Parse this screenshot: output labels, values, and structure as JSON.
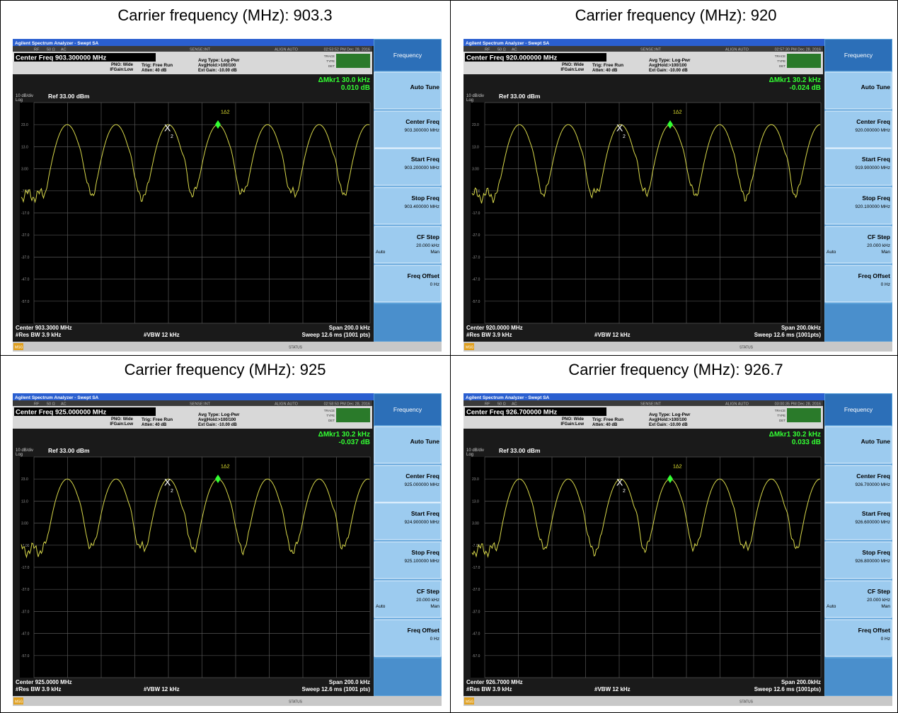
{
  "common": {
    "app_title": "Agilent Spectrum Analyzer - Swept SA",
    "rf": "RF",
    "ohm": "50 Ω",
    "ac": "AC",
    "sense": "SENSE:INT",
    "align": "ALIGN AUTO",
    "pno": "PNO: Wide",
    "ifgain": "IFGain:Low",
    "trig": "Trig: Free Run",
    "atten": "Atten: 40 dB",
    "avg_type": "Avg Type: Log-Pwr",
    "avg_hold": "Avg|Hold:>100/100",
    "ext_gain": "Ext Gain: -10.00 dB",
    "trace": "TRACE",
    "type": "TYPE",
    "det": "DET",
    "scale": "10 dB/div",
    "log": "Log",
    "ref": "Ref 33.00 dBm",
    "y_labels": [
      "23.0",
      "13.0",
      "3.00",
      "-7.00",
      "-17.0",
      "-27.0",
      "-37.0",
      "-47.0",
      "-57.0"
    ],
    "res_bw": "#Res BW 3.9 kHz",
    "vbw": "#VBW 12 kHz",
    "msg": "MSG",
    "status": "STATUS",
    "marker_x": "X",
    "marker_x_sub": "2",
    "marker_delta_label": "1Δ2",
    "softkeys": {
      "menu": "Frequency",
      "auto_tune": "Auto Tune",
      "center_freq": "Center Freq",
      "start_freq": "Start Freq",
      "stop_freq": "Stop Freq",
      "cf_step": "CF Step",
      "cf_step_value": "20.000 kHz",
      "auto": "Auto",
      "man": "Man",
      "freq_offset": "Freq Offset",
      "freq_offset_value": "0 Hz"
    }
  },
  "panels": [
    {
      "title": "Carrier frequency (MHz): 903.3",
      "time": "02:53:52 PM Dec 28, 2016",
      "center_freq_header": "Center Freq 903.300000 MHz",
      "mkr_freq": "ΔMkr1 30.0 kHz",
      "mkr_value": "0.010 dB",
      "center": "Center 903.3000 MHz",
      "span": "Span 200.0 kHz",
      "sweep": "Sweep 12.6 ms (1001 pts)",
      "sk_center": "903.300000 MHz",
      "sk_start": "903.200000 MHz",
      "sk_stop": "903.400000 MHz"
    },
    {
      "title": "Carrier frequency (MHz): 920",
      "time": "02:57:30 PM Dec 28, 2016",
      "center_freq_header": "Center Freq 920.000000 MHz",
      "mkr_freq": "ΔMkr1 30.2 kHz",
      "mkr_value": "-0.024 dB",
      "center": "Center 920.0000 MHz",
      "span": "Span 200.0kHz",
      "sweep": "Sweep 12.6 ms (1001pts)",
      "sk_center": "920.000000 MHz",
      "sk_start": "919.900000 MHz",
      "sk_stop": "920.100000 MHz"
    },
    {
      "title": "Carrier frequency (MHz): 925",
      "time": "02:58:50 PM Dec 28, 2016",
      "center_freq_header": "Center Freq 925.000000 MHz",
      "mkr_freq": "ΔMkr1 30.2 kHz",
      "mkr_value": "-0.037 dB",
      "center": "Center 925.0000 MHz",
      "span": "Span 200.0 kHz",
      "sweep": "Sweep 12.6 ms (1001 pts)",
      "sk_center": "925.000000 MHz",
      "sk_start": "924.900000 MHz",
      "sk_stop": "925.100000 MHz"
    },
    {
      "title": "Carrier frequency (MHz): 926.7",
      "time": "03:00:35 PM Dec 28, 2016",
      "center_freq_header": "Center Freq 926.700000 MHz",
      "mkr_freq": "ΔMkr1 30.2 kHz",
      "mkr_value": "0.033 dB",
      "center": "Center 926.7000 MHz",
      "span": "Span 200.0kHz",
      "sweep": "Sweep 12.6 ms (1001pts)",
      "sk_center": "926.700000 MHz",
      "sk_start": "926.600000 MHz",
      "sk_stop": "926.800000 MHz"
    }
  ]
}
